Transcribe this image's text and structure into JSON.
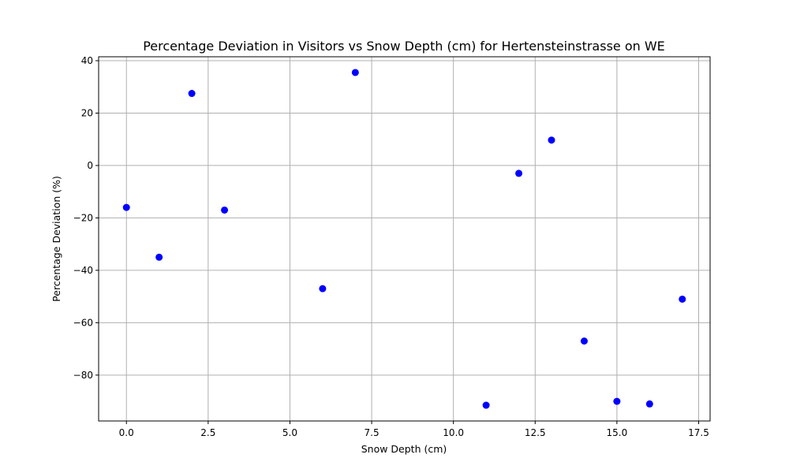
{
  "chart_data": {
    "type": "scatter",
    "title": "Percentage Deviation in Visitors vs Snow Depth (cm) for Hertensteinstrasse on WE",
    "xlabel": "Snow Depth (cm)",
    "ylabel": "Percentage Deviation (%)",
    "xlim": [
      -0.85,
      17.85
    ],
    "ylim": [
      -97.5,
      41.5
    ],
    "xticks": [
      0.0,
      2.5,
      5.0,
      7.5,
      10.0,
      12.5,
      15.0,
      17.5
    ],
    "xtick_labels": [
      "0.0",
      "2.5",
      "5.0",
      "7.5",
      "10.0",
      "12.5",
      "15.0",
      "17.5"
    ],
    "yticks": [
      -80,
      -60,
      -40,
      -20,
      0,
      20,
      40
    ],
    "ytick_labels": [
      "−80",
      "−60",
      "−40",
      "−20",
      "0",
      "20",
      "40"
    ],
    "grid": true,
    "marker_color": "#0000ff",
    "points": [
      {
        "x": 0,
        "y": -16
      },
      {
        "x": 1,
        "y": -35
      },
      {
        "x": 2,
        "y": 27.5
      },
      {
        "x": 3,
        "y": -17
      },
      {
        "x": 6,
        "y": -47
      },
      {
        "x": 7,
        "y": 35.5
      },
      {
        "x": 11,
        "y": -91.5
      },
      {
        "x": 12,
        "y": -3
      },
      {
        "x": 13,
        "y": 9.7
      },
      {
        "x": 14,
        "y": -67
      },
      {
        "x": 15,
        "y": -90
      },
      {
        "x": 16,
        "y": -91
      },
      {
        "x": 17,
        "y": -51
      }
    ]
  }
}
